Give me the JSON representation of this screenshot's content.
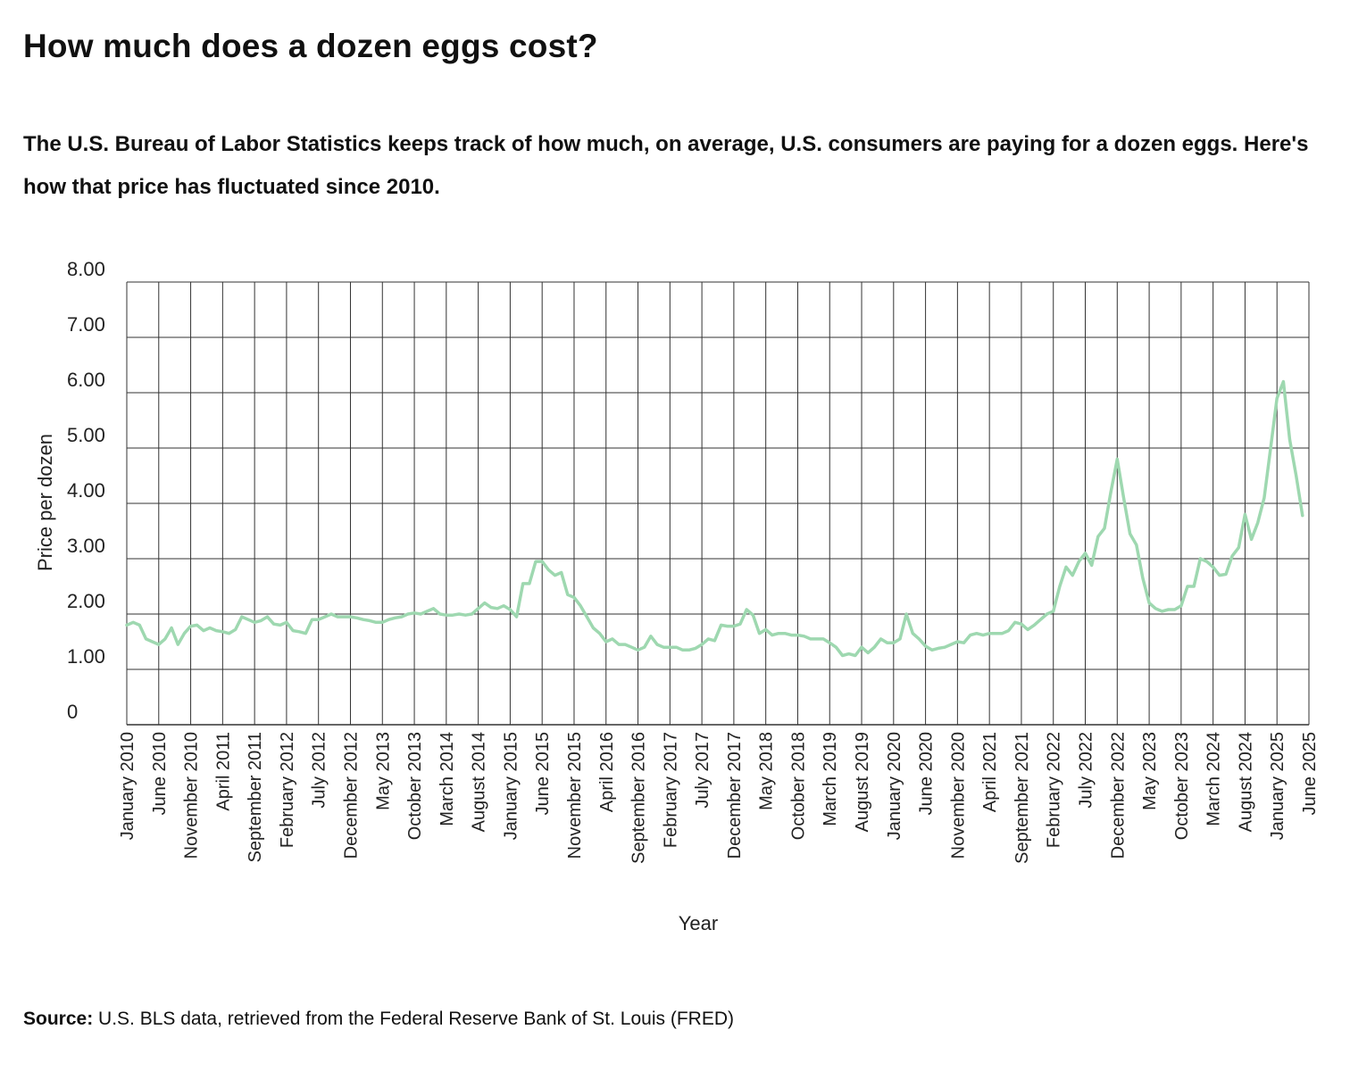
{
  "title": "How much does a dozen eggs cost?",
  "subtitle": "The U.S. Bureau of Labor Statistics keeps track of how much, on average, U.S. consumers are paying for a dozen eggs. Here's how that price has fluctuated since 2010.",
  "source": {
    "label": "Source:",
    "text": " U.S. BLS data, retrieved from the Federal Reserve Bank of St. Louis (FRED)"
  },
  "chart_data": {
    "type": "line",
    "xlabel": "Year",
    "ylabel": "Price per dozen",
    "ylim": [
      0,
      8
    ],
    "y_ticks": [
      {
        "value": 0,
        "label": "0"
      },
      {
        "value": 1,
        "label": "1.00"
      },
      {
        "value": 2,
        "label": "2.00"
      },
      {
        "value": 3,
        "label": "3.00"
      },
      {
        "value": 4,
        "label": "4.00"
      },
      {
        "value": 5,
        "label": "5.00"
      },
      {
        "value": 6,
        "label": "6.00"
      },
      {
        "value": 7,
        "label": "7.00"
      },
      {
        "value": 8,
        "label": "8.00"
      }
    ],
    "x_start": "2010-01",
    "x_end": "2025-06",
    "x_ticks": [
      "January 2010",
      "June 2010",
      "November 2010",
      "April 2011",
      "September 2011",
      "February 2012",
      "July 2012",
      "December 2012",
      "May 2013",
      "October 2013",
      "March 2014",
      "August 2014",
      "January 2015",
      "June 2015",
      "November 2015",
      "April 2016",
      "September 2016",
      "February 2017",
      "July 2017",
      "December 2017",
      "May 2018",
      "October 2018",
      "March 2019",
      "August 2019",
      "January 2020",
      "June 2020",
      "November 2020",
      "April 2021",
      "September 2021",
      "February 2022",
      "July 2022",
      "December 2022",
      "May 2023",
      "October 2023",
      "March 2024",
      "August 2024",
      "January 2025",
      "June 2025"
    ],
    "grid": true,
    "legend": "none",
    "colors": {
      "line": "#9ed8b0",
      "grid": "#333333",
      "text": "#111111"
    },
    "series": [
      {
        "values": [
          1.8,
          1.85,
          1.8,
          1.55,
          1.5,
          1.45,
          1.55,
          1.75,
          1.45,
          1.65,
          1.78,
          1.8,
          1.7,
          1.75,
          1.7,
          1.68,
          1.65,
          1.72,
          1.95,
          1.9,
          1.85,
          1.88,
          1.95,
          1.82,
          1.8,
          1.85,
          1.7,
          1.68,
          1.65,
          1.9,
          1.9,
          1.95,
          2.0,
          1.95,
          1.95,
          1.95,
          1.93,
          1.9,
          1.88,
          1.85,
          1.85,
          1.9,
          1.93,
          1.95,
          2.0,
          2.02,
          2.0,
          2.05,
          2.1,
          2.0,
          1.98,
          1.98,
          2.0,
          1.98,
          2.0,
          2.1,
          2.2,
          2.12,
          2.1,
          2.15,
          2.08,
          1.95,
          2.55,
          2.55,
          2.95,
          2.95,
          2.8,
          2.7,
          2.75,
          2.35,
          2.3,
          2.15,
          1.95,
          1.75,
          1.65,
          1.5,
          1.55,
          1.45,
          1.45,
          1.4,
          1.35,
          1.4,
          1.6,
          1.45,
          1.4,
          1.4,
          1.4,
          1.35,
          1.35,
          1.38,
          1.45,
          1.55,
          1.52,
          1.8,
          1.78,
          1.78,
          1.82,
          2.08,
          1.98,
          1.65,
          1.72,
          1.62,
          1.65,
          1.65,
          1.62,
          1.62,
          1.6,
          1.55,
          1.55,
          1.55,
          1.48,
          1.4,
          1.25,
          1.28,
          1.25,
          1.4,
          1.3,
          1.4,
          1.55,
          1.48,
          1.48,
          1.55,
          2.0,
          1.65,
          1.55,
          1.42,
          1.35,
          1.38,
          1.4,
          1.45,
          1.5,
          1.48,
          1.62,
          1.65,
          1.62,
          1.65,
          1.65,
          1.65,
          1.7,
          1.85,
          1.82,
          1.72,
          1.8,
          1.9,
          2.0,
          2.05,
          2.5,
          2.85,
          2.7,
          2.95,
          3.1,
          2.88,
          3.4,
          3.55,
          4.2,
          4.8,
          4.1,
          3.45,
          3.25,
          2.65,
          2.2,
          2.1,
          2.05,
          2.08,
          2.08,
          2.15,
          2.5,
          2.5,
          3.0,
          2.95,
          2.85,
          2.7,
          2.72,
          3.05,
          3.2,
          3.8,
          3.35,
          3.65,
          4.1,
          5.0,
          5.9,
          6.2,
          5.15,
          4.5,
          3.78
        ]
      }
    ]
  }
}
